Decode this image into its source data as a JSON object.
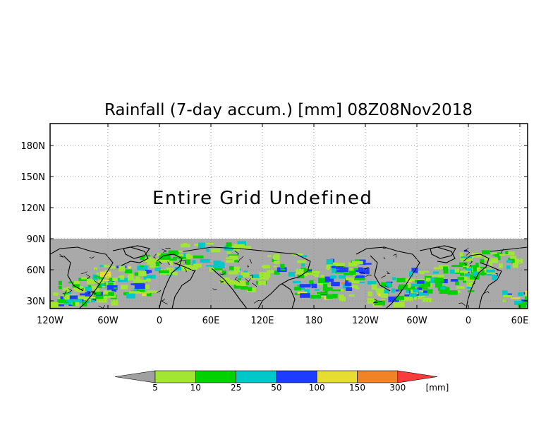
{
  "title": "Rainfall (7-day accum.) [mm] 08Z08Nov2018",
  "annotation": "Entire Grid Undefined",
  "axes": {
    "lon_ticks": [
      "120W",
      "60W",
      "0",
      "60E",
      "120E",
      "180",
      "120W",
      "60W",
      "0",
      "60E"
    ],
    "lat_ticks": [
      "180N",
      "150N",
      "120N",
      "90N",
      "60N",
      "30N"
    ]
  },
  "colorbar": {
    "unit": "[mm]",
    "labels": [
      "5",
      "10",
      "25",
      "50",
      "100",
      "150",
      "300"
    ],
    "colors": [
      "#a0a0a0",
      "#a0e632",
      "#00d200",
      "#00c8c8",
      "#1e3cff",
      "#e6dc32",
      "#f08228",
      "#fa3c3c"
    ]
  },
  "map": {
    "undefined_color": "#a9a9a9",
    "grid": true
  }
}
